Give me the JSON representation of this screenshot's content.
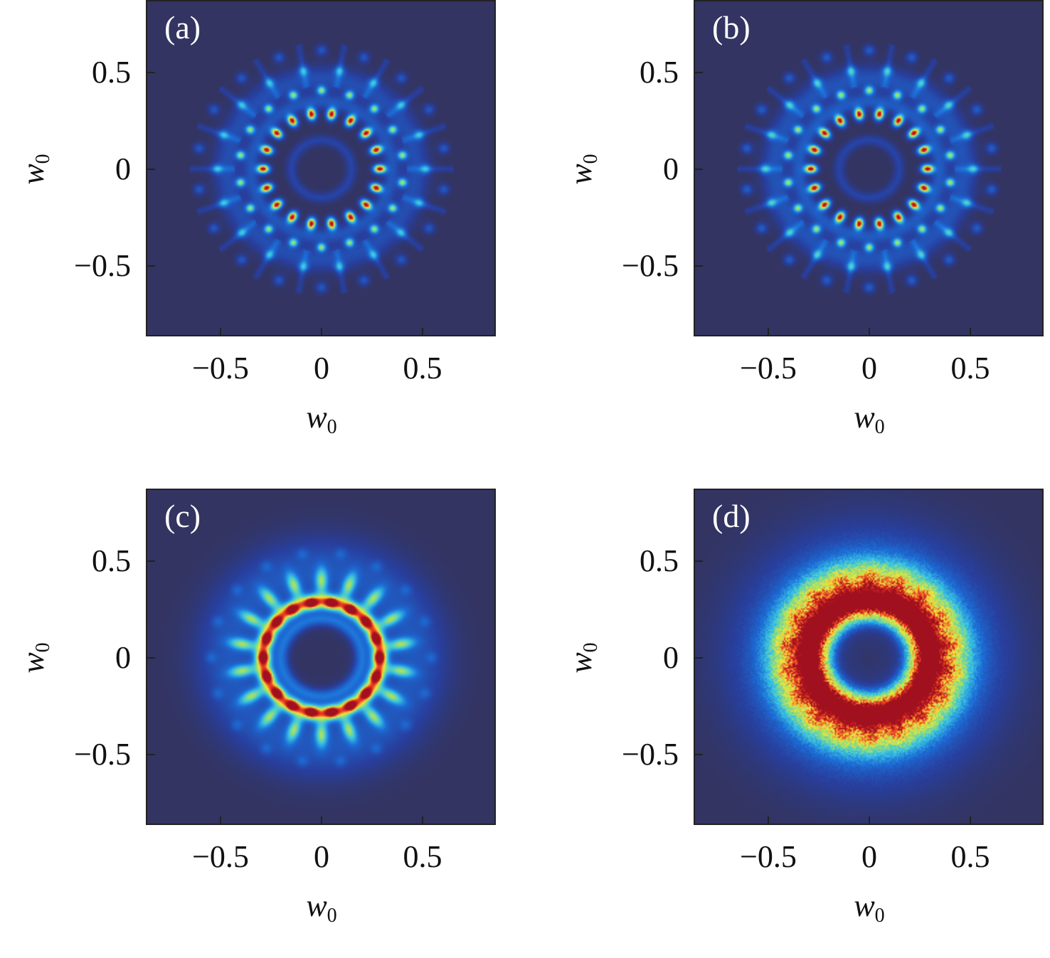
{
  "chart_data": [
    {
      "type": "heatmap",
      "panel_label": "(a)",
      "xlabel": "w",
      "xlabel_sub": "0",
      "ylabel": "w",
      "ylabel_sub": "0",
      "xlim": [
        -0.87,
        0.87
      ],
      "ylim": [
        -0.87,
        0.87
      ],
      "xticks": [
        "−0.5",
        "0",
        "0.5"
      ],
      "xtick_values": [
        -0.5,
        0,
        0.5
      ],
      "yticks": [
        "0.5",
        "0",
        "−0.5"
      ],
      "ytick_values": [
        0.5,
        0,
        -0.5
      ],
      "pattern": "spots",
      "rings": [
        {
          "r": 0.29,
          "n": 18,
          "phase_deg": 0,
          "amp": 1.0,
          "sr": 0.022,
          "st": 0.016
        },
        {
          "r": 0.41,
          "n": 18,
          "phase_deg": 10,
          "amp": 0.55,
          "sr": 0.016,
          "st": 0.016
        },
        {
          "r": 0.52,
          "n": 18,
          "phase_deg": 0,
          "amp": 0.3,
          "sr": 0.018,
          "st": 0.018
        },
        {
          "r": 0.62,
          "n": 18,
          "phase_deg": 10,
          "amp": 0.22,
          "sr": 0.02,
          "st": 0.02
        }
      ],
      "bands": [
        {
          "r": 0.15,
          "w": 0.02,
          "amp": 0.14
        },
        {
          "r": 0.35,
          "w": 0.03,
          "amp": 0.2
        },
        {
          "r": 0.47,
          "w": 0.05,
          "amp": 0.18
        }
      ]
    },
    {
      "type": "heatmap",
      "panel_label": "(b)",
      "xlabel": "w",
      "xlabel_sub": "0",
      "ylabel": "w",
      "ylabel_sub": "0",
      "xlim": [
        -0.87,
        0.87
      ],
      "ylim": [
        -0.87,
        0.87
      ],
      "xticks": [
        "−0.5",
        "0",
        "0.5"
      ],
      "xtick_values": [
        -0.5,
        0,
        0.5
      ],
      "yticks": [
        "0.5",
        "0",
        "−0.5"
      ],
      "ytick_values": [
        0.5,
        0,
        -0.5
      ],
      "pattern": "spots",
      "rings": [
        {
          "r": 0.29,
          "n": 18,
          "phase_deg": 0,
          "amp": 1.0,
          "sr": 0.022,
          "st": 0.016
        },
        {
          "r": 0.41,
          "n": 18,
          "phase_deg": 10,
          "amp": 0.55,
          "sr": 0.016,
          "st": 0.016
        },
        {
          "r": 0.52,
          "n": 18,
          "phase_deg": 0,
          "amp": 0.32,
          "sr": 0.018,
          "st": 0.018
        },
        {
          "r": 0.62,
          "n": 18,
          "phase_deg": 10,
          "amp": 0.24,
          "sr": 0.02,
          "st": 0.02
        }
      ],
      "bands": [
        {
          "r": 0.15,
          "w": 0.02,
          "amp": 0.14
        },
        {
          "r": 0.35,
          "w": 0.03,
          "amp": 0.22
        },
        {
          "r": 0.47,
          "w": 0.05,
          "amp": 0.2
        }
      ]
    },
    {
      "type": "heatmap",
      "panel_label": "(c)",
      "xlabel": "w",
      "xlabel_sub": "0",
      "ylabel": "w",
      "ylabel_sub": "0",
      "xlim": [
        -0.87,
        0.87
      ],
      "ylim": [
        -0.87,
        0.87
      ],
      "xticks": [
        "−0.5",
        "0",
        "0.5"
      ],
      "xtick_values": [
        -0.5,
        0,
        0.5
      ],
      "yticks": [
        "0.5",
        "0",
        "−0.5"
      ],
      "ytick_values": [
        0.5,
        0,
        -0.5
      ],
      "pattern": "petals",
      "rings": [
        {
          "r": 0.29,
          "n": 18,
          "phase_deg": 0,
          "amp": 0.45,
          "sr": 0.02,
          "st": 0.02
        },
        {
          "r": 0.4,
          "n": 18,
          "phase_deg": 10,
          "amp": 0.45,
          "sr": 0.05,
          "st": 0.022
        },
        {
          "r": 0.55,
          "n": 18,
          "phase_deg": 0,
          "amp": 0.12,
          "sr": 0.02,
          "st": 0.02
        }
      ],
      "bands": [
        {
          "r": 0.29,
          "w": 0.03,
          "amp": 0.72
        },
        {
          "r": 0.2,
          "w": 0.025,
          "amp": 0.28
        },
        {
          "r": 0.45,
          "w": 0.13,
          "amp": 0.22
        }
      ]
    },
    {
      "type": "heatmap",
      "panel_label": "(d)",
      "xlabel": "w",
      "xlabel_sub": "0",
      "ylabel": "w",
      "ylabel_sub": "0",
      "xlim": [
        -0.87,
        0.87
      ],
      "ylim": [
        -0.87,
        0.87
      ],
      "xticks": [
        "−0.5",
        "0",
        "0.5"
      ],
      "xtick_values": [
        -0.5,
        0,
        0.5
      ],
      "yticks": [
        "0.5",
        "0",
        "−0.5"
      ],
      "ytick_values": [
        0.5,
        0,
        -0.5
      ],
      "pattern": "noisy-ring",
      "rings": [
        {
          "r": 0.41,
          "n": 18,
          "phase_deg": 10,
          "amp": 0.12,
          "sr": 0.05,
          "st": 0.03
        }
      ],
      "bands": [
        {
          "r": 0.29,
          "w": 0.05,
          "amp": 0.95
        },
        {
          "r": 0.41,
          "w": 0.09,
          "amp": 0.5
        },
        {
          "r": 0.2,
          "w": 0.03,
          "amp": 0.25
        },
        {
          "r": 0.45,
          "w": 0.2,
          "amp": 0.22
        }
      ]
    }
  ],
  "colormap": [
    "#333461",
    "#283f9e",
    "#1c6cd6",
    "#39c6e4",
    "#9fe06a",
    "#f5e63a",
    "#ee3b22",
    "#a0101e"
  ]
}
